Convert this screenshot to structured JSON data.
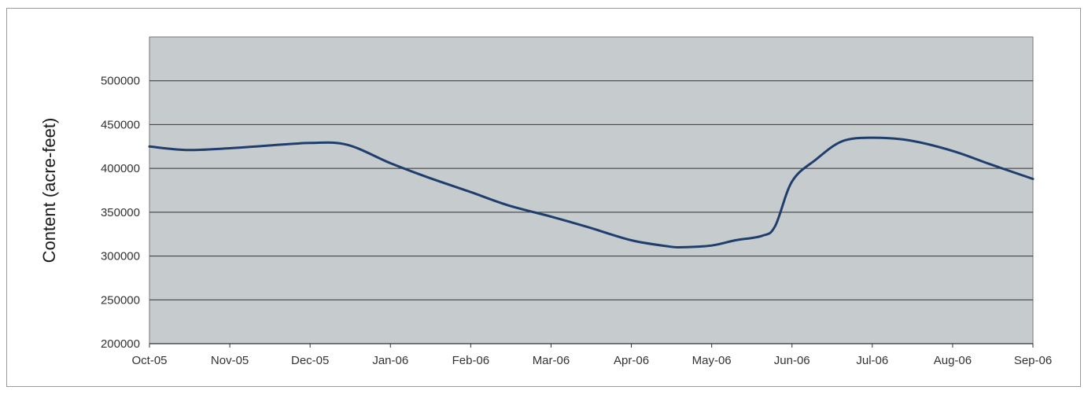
{
  "chart_data": {
    "type": "line",
    "title": "",
    "xlabel": "",
    "ylabel": "Content (acre-feet)",
    "ylim": [
      200000,
      550000
    ],
    "y_ticks": [
      200000,
      250000,
      300000,
      350000,
      400000,
      450000,
      500000
    ],
    "x_ticks": [
      "Oct-05",
      "Nov-05",
      "Dec-05",
      "Jan-06",
      "Feb-06",
      "Mar-06",
      "Apr-06",
      "May-06",
      "Jun-06",
      "Jul-06",
      "Aug-06",
      "Sep-06"
    ],
    "grid": true,
    "legend": "none",
    "colors": {
      "plot_background": "#c6ccce",
      "line": "#1f3e6e",
      "grid": "#333333"
    },
    "series": [
      {
        "x": [
          "Oct-05",
          "Oct-15-05",
          "Nov-01-05",
          "Nov-15-05",
          "Dec-05",
          "Dec-15-05",
          "Jan-06",
          "Jan-15-06",
          "Feb-06",
          "Feb-15-06",
          "Mar-06",
          "Mar-15-06",
          "Apr-06",
          "Apr-15-06",
          "Apr-20-06",
          "May-06",
          "May-10-06",
          "May-20-06",
          "May-25-06",
          "Jun-06",
          "Jun-10-06",
          "Jun-20-06",
          "Jul-06",
          "Jul-15-06",
          "Aug-06",
          "Aug-15-06",
          "Sep-06"
        ],
        "values": [
          425000,
          421000,
          423000,
          426000,
          429000,
          427000,
          406000,
          390000,
          373000,
          358000,
          345000,
          333000,
          318000,
          311000,
          310000,
          312000,
          318000,
          323000,
          334000,
          385000,
          410000,
          431000,
          435000,
          432000,
          420000,
          405000,
          388000
        ]
      }
    ]
  }
}
